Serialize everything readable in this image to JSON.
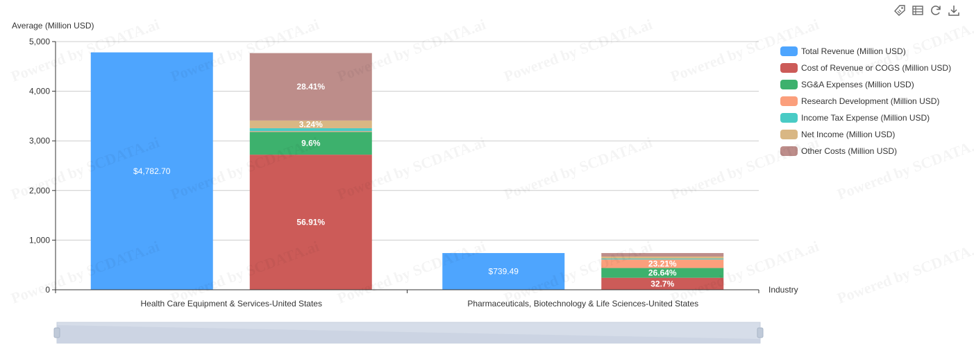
{
  "toolbar": {
    "icons": [
      "tag-icon",
      "data-view-icon",
      "restore-icon",
      "download-icon"
    ]
  },
  "watermark_text": "Powered by SCDATA.ai",
  "chart_data": {
    "type": "bar",
    "title": "",
    "ylabel": "Average (Million USD)",
    "xlabel": "Industry",
    "ylim": [
      0,
      5000
    ],
    "yticks": [
      "0",
      "1,000",
      "2,000",
      "3,000",
      "4,000",
      "5,000"
    ],
    "grid": true,
    "legend_position": "right",
    "categories": [
      "Health Care Equipment & Services-United States",
      "Pharmaceuticals, Biotechnology & Life Sciences-United States"
    ],
    "series": [
      {
        "name": "Total Revenue (Million USD)",
        "color": "#4ea5fe",
        "stack": "revenue",
        "values": [
          4782.7,
          739.49
        ],
        "labels": [
          "$4,782.70",
          "$739.49"
        ]
      },
      {
        "name": "Cost of Revenue or COGS (Million USD)",
        "color": "#cc5b58",
        "stack": "costs",
        "values": [
          56.91,
          32.7
        ],
        "labels": [
          "56.91%",
          "32.7%"
        ]
      },
      {
        "name": "SG&A Expenses (Million USD)",
        "color": "#3db16d",
        "stack": "costs",
        "values": [
          9.6,
          26.64
        ],
        "labels": [
          "9.6%",
          "26.64%"
        ]
      },
      {
        "name": "Research Development (Million USD)",
        "color": "#fb9f7c",
        "stack": "costs",
        "values": [
          0.3,
          23.21
        ],
        "labels": [
          "",
          "23.21%"
        ]
      },
      {
        "name": "Income Tax Expense (Million USD)",
        "color": "#49cbc5",
        "stack": "costs",
        "values": [
          1.24,
          2.5
        ],
        "labels": [
          "",
          ""
        ]
      },
      {
        "name": "Net Income (Million USD)",
        "color": "#d9b784",
        "stack": "costs",
        "values": [
          3.24,
          5.6
        ],
        "labels": [
          "3.24%",
          ""
        ]
      },
      {
        "name": "Other Costs (Million USD)",
        "color": "#bd8d8a",
        "stack": "costs",
        "values": [
          28.41,
          9.35
        ],
        "labels": [
          "28.41%",
          ""
        ]
      }
    ]
  }
}
